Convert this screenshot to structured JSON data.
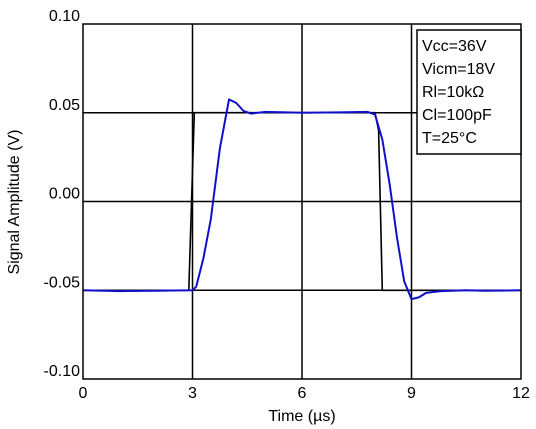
{
  "chart_data": {
    "type": "line",
    "xlabel": "Time (µs)",
    "ylabel": "Signal Amplitude (V)",
    "xlim": [
      0,
      12
    ],
    "ylim": [
      -0.1,
      0.1
    ],
    "x_ticks": [
      "0",
      "3",
      "6",
      "9",
      "12"
    ],
    "y_ticks": [
      "0.10",
      "0.05",
      "0.00",
      "-0.05",
      "-0.10"
    ],
    "grid": true,
    "legend_position": "top-right",
    "conditions": [
      "Vcc=36V",
      "Vicm=18V",
      "Rl=10kΩ",
      "Cl=100pF",
      "T=25°C"
    ],
    "series": [
      {
        "color": "#000000",
        "x": [
          0,
          2.9,
          3.05,
          8.0,
          8.1,
          8.2,
          12
        ],
        "y": [
          -0.05,
          -0.05,
          0.05,
          0.05,
          0.04,
          -0.05,
          -0.05
        ]
      },
      {
        "color": "#1010cc",
        "x": [
          0,
          1.0,
          2.0,
          3.0,
          3.1,
          3.3,
          3.5,
          3.75,
          4.0,
          4.2,
          4.4,
          4.6,
          5.0,
          6.0,
          7.0,
          7.8,
          8.0,
          8.2,
          8.4,
          8.6,
          8.8,
          9.0,
          9.2,
          9.4,
          9.8,
          10.5,
          11.0,
          12.0
        ],
        "y": [
          -0.05,
          -0.0505,
          -0.0503,
          -0.05,
          -0.048,
          -0.032,
          -0.01,
          0.03,
          0.0575,
          0.0555,
          0.051,
          0.0495,
          0.0505,
          0.05,
          0.0502,
          0.0505,
          0.049,
          0.035,
          0.01,
          -0.02,
          -0.045,
          -0.055,
          -0.054,
          -0.0515,
          -0.0505,
          -0.05,
          -0.0503,
          -0.05
        ]
      }
    ]
  }
}
